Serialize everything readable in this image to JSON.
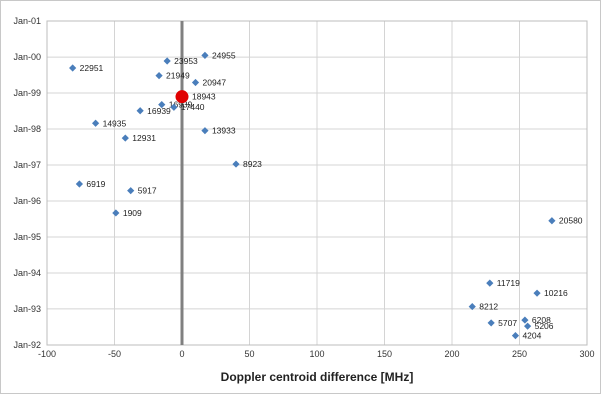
{
  "chart_data": {
    "type": "scatter",
    "title": "",
    "xlabel": "Doppler centroid difference [MHz]",
    "ylabel": "",
    "xlim": [
      -100,
      300
    ],
    "x_ticks": [
      -100,
      -50,
      0,
      50,
      100,
      150,
      200,
      250,
      300
    ],
    "ylim": [
      "1992-01-01",
      "2001-01-01"
    ],
    "y_ticks": [
      "1992-01-01",
      "1993-01-01",
      "1994-01-01",
      "1995-01-01",
      "1996-01-01",
      "1997-01-01",
      "1998-01-01",
      "1999-01-01",
      "2000-01-01",
      "2001-01-01"
    ],
    "y_tick_labels": [
      "Jan-92",
      "Jan-93",
      "Jan-94",
      "Jan-95",
      "Jan-96",
      "Jan-97",
      "Jan-98",
      "Jan-99",
      "Jan-00",
      "Jan-01"
    ],
    "grid": true,
    "reference_line_x": 0,
    "marker_color": "#4a7ebb",
    "reference_color": "#e00000",
    "reference_point": {
      "x": 0,
      "y": "1998-11-25",
      "label": "18943"
    },
    "series": [
      {
        "points": [
          {
            "x": 17,
            "y": "2000-01-18",
            "label": "24955"
          },
          {
            "x": -11,
            "y": "1999-11-22",
            "label": "23953"
          },
          {
            "x": -81,
            "y": "1999-09-12",
            "label": "22951"
          },
          {
            "x": -17,
            "y": "1999-06-27",
            "label": "21949"
          },
          {
            "x": 10,
            "y": "1999-04-18",
            "label": "20947"
          },
          {
            "x": -15,
            "y": "1998-09-05",
            "label": "16939"
          },
          {
            "x": -31,
            "y": "1998-07-05",
            "label": "16939"
          },
          {
            "x": -6,
            "y": "1998-08-10",
            "label": "17440"
          },
          {
            "x": 17,
            "y": "1997-12-15",
            "label": "13933"
          },
          {
            "x": -64,
            "y": "1998-02-28",
            "label": "14935"
          },
          {
            "x": -42,
            "y": "1997-10-01",
            "label": "12931"
          },
          {
            "x": 40,
            "y": "1997-01-10",
            "label": "8923"
          },
          {
            "x": -76,
            "y": "1996-06-22",
            "label": "6919"
          },
          {
            "x": -38,
            "y": "1996-04-15",
            "label": "5917"
          },
          {
            "x": -49,
            "y": "1995-09-02",
            "label": "1909"
          },
          {
            "x": 274,
            "y": "1995-06-15",
            "label": "20580"
          },
          {
            "x": 228,
            "y": "1993-09-20",
            "label": "11719"
          },
          {
            "x": 263,
            "y": "1993-06-10",
            "label": "10216"
          },
          {
            "x": 215,
            "y": "1993-01-25",
            "label": "8212"
          },
          {
            "x": 254,
            "y": "1992-09-10",
            "label": "6208"
          },
          {
            "x": 229,
            "y": "1992-08-12",
            "label": "5707"
          },
          {
            "x": 256,
            "y": "1992-07-10",
            "label": "5206"
          },
          {
            "x": 247,
            "y": "1992-04-05",
            "label": "4204"
          }
        ]
      }
    ]
  }
}
